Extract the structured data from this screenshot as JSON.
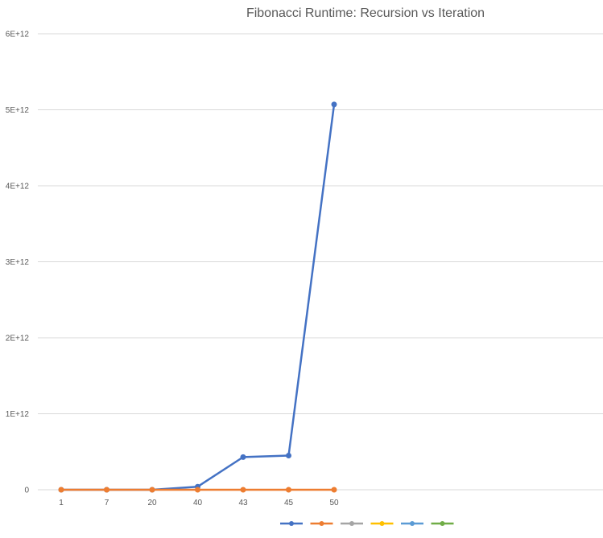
{
  "chart_data": {
    "type": "line",
    "title": "Fibonacci Runtime: Recursion vs Iteration",
    "categories": [
      "1",
      "7",
      "20",
      "40",
      "43",
      "45",
      "50"
    ],
    "ylim": [
      0,
      6000000000000
    ],
    "yticks": [
      {
        "value": 0,
        "label": "0"
      },
      {
        "value": 1000000000000,
        "label": "1E+12"
      },
      {
        "value": 2000000000000,
        "label": "2E+12"
      },
      {
        "value": 3000000000000,
        "label": "3E+12"
      },
      {
        "value": 4000000000000,
        "label": "4E+12"
      },
      {
        "value": 5000000000000,
        "label": "5E+12"
      },
      {
        "value": 6000000000000,
        "label": "6E+12"
      }
    ],
    "grid": true,
    "legend_position": "bottom",
    "series": [
      {
        "color": "#4472C4",
        "values": [
          0,
          0,
          0,
          40000000000,
          430000000000,
          450000000000,
          5070000000000
        ]
      },
      {
        "color": "#ED7D31",
        "values": [
          0,
          0,
          0,
          0,
          0,
          0,
          0
        ]
      }
    ],
    "legend_swatches": [
      {
        "color": "#4472C4"
      },
      {
        "color": "#ED7D31"
      },
      {
        "color": "#A5A5A5"
      },
      {
        "color": "#FFC000"
      },
      {
        "color": "#5B9BD5"
      },
      {
        "color": "#70AD47"
      }
    ]
  }
}
